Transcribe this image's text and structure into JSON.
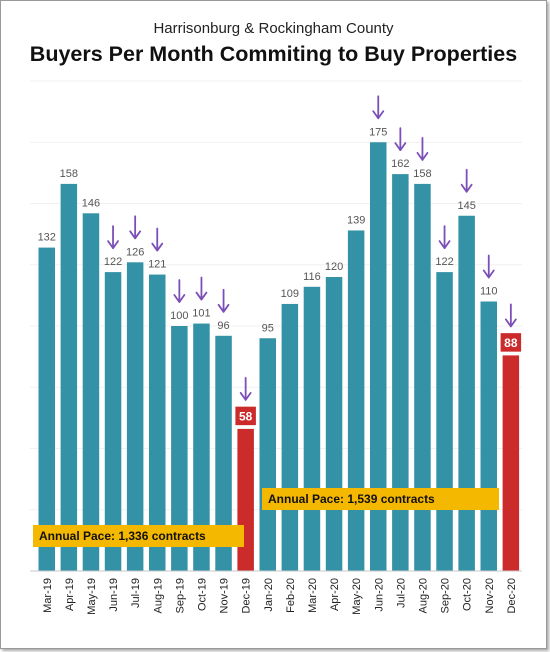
{
  "subtitle": "Harrisonburg & Rockingham County",
  "title": "Buyers Per Month Commiting to Buy Properties",
  "colors": {
    "bar": "#3492a6",
    "highlight": "#cc2b2b",
    "arrow": "#7b4fb7",
    "pace": "#f5b800"
  },
  "annotations": {
    "pace_2019": "Annual Pace: 1,336 contracts",
    "pace_2020": "Annual Pace: 1,539 contracts"
  },
  "chart_data": {
    "type": "bar",
    "categories": [
      "Mar-19",
      "Apr-19",
      "May-19",
      "Jun-19",
      "Jul-19",
      "Aug-19",
      "Sep-19",
      "Oct-19",
      "Nov-19",
      "Dec-19",
      "Jan-20",
      "Feb-20",
      "Mar-20",
      "Apr-20",
      "May-20",
      "Jun-20",
      "Jul-20",
      "Aug-20",
      "Sep-20",
      "Oct-20",
      "Nov-20",
      "Dec-20"
    ],
    "values": [
      132,
      158,
      146,
      122,
      126,
      121,
      100,
      101,
      96,
      58,
      95,
      109,
      116,
      120,
      139,
      175,
      162,
      158,
      122,
      145,
      110,
      88
    ],
    "highlighted": [
      "Dec-19",
      "Dec-20"
    ],
    "arrows_on": [
      "Jun-19",
      "Jul-19",
      "Aug-19",
      "Sep-19",
      "Oct-19",
      "Nov-19",
      "Dec-19",
      "Jun-20",
      "Jul-20",
      "Aug-20",
      "Sep-20",
      "Oct-20",
      "Nov-20",
      "Dec-20"
    ],
    "ylim": [
      0,
      200
    ],
    "grid": true,
    "title": "Buyers Per Month Commiting to Buy Properties",
    "xlabel": "",
    "ylabel": ""
  }
}
